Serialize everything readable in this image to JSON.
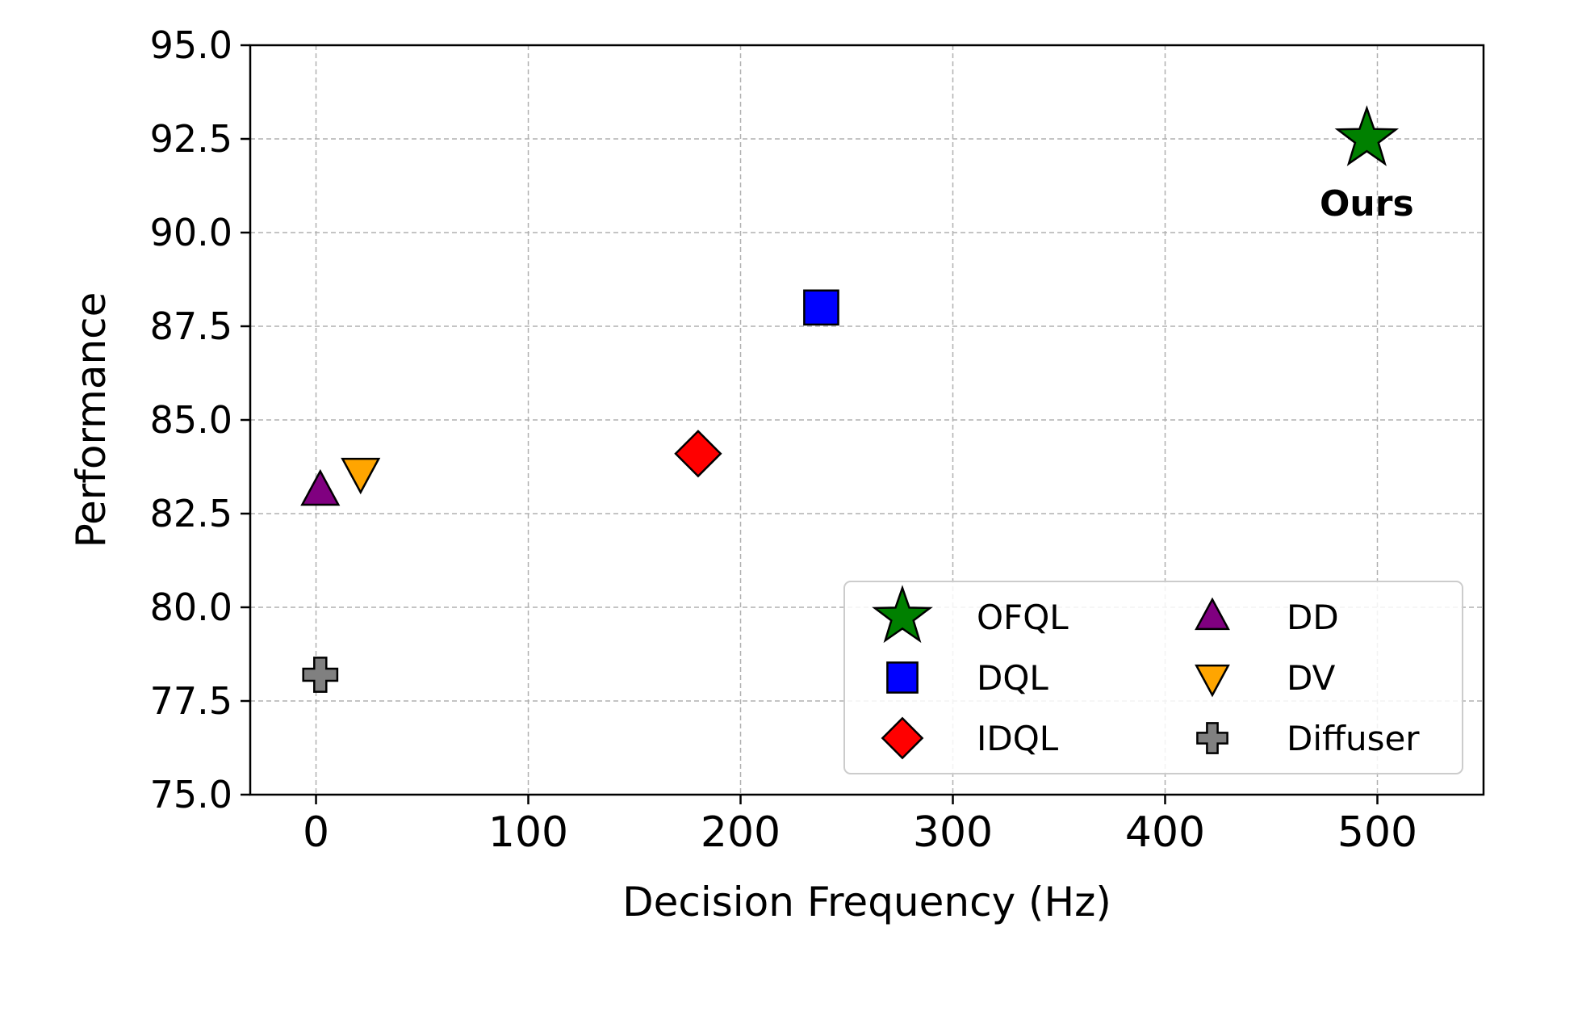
{
  "chart_data": {
    "type": "scatter",
    "title": "",
    "xlabel": "Decision Frequency (Hz)",
    "ylabel": "Performance",
    "xlim": [
      -31,
      550
    ],
    "ylim": [
      75.0,
      95.0
    ],
    "xticks": [
      0,
      100,
      200,
      300,
      400,
      500
    ],
    "yticks": [
      75.0,
      77.5,
      80.0,
      82.5,
      85.0,
      87.5,
      90.0,
      92.5,
      95.0
    ],
    "xtick_labels": [
      "0",
      "100",
      "200",
      "300",
      "400",
      "500"
    ],
    "ytick_labels": [
      "75.0",
      "77.5",
      "80.0",
      "82.5",
      "85.0",
      "87.5",
      "90.0",
      "92.5",
      "95.0"
    ],
    "grid": true,
    "legend_position": "lower-right",
    "legend_columns": 2,
    "series": [
      {
        "name": "OFQL",
        "marker": "star",
        "color": "#008000",
        "x": [
          495
        ],
        "y": [
          92.5
        ]
      },
      {
        "name": "DQL",
        "marker": "square",
        "color": "#0000ff",
        "x": [
          238
        ],
        "y": [
          88.0
        ]
      },
      {
        "name": "IDQL",
        "marker": "diamond",
        "color": "#ff0000",
        "x": [
          180
        ],
        "y": [
          84.1
        ]
      },
      {
        "name": "DD",
        "marker": "triangle-up",
        "color": "#800080",
        "x": [
          2
        ],
        "y": [
          83.1
        ]
      },
      {
        "name": "DV",
        "marker": "triangle-down",
        "color": "#ffa500",
        "x": [
          21
        ],
        "y": [
          83.6
        ]
      },
      {
        "name": "Diffuser",
        "marker": "plus-filled",
        "color": "#808080",
        "x": [
          2
        ],
        "y": [
          78.2
        ]
      }
    ],
    "annotations": [
      {
        "text": "Ours",
        "x": 495,
        "y": 90.8
      }
    ]
  }
}
